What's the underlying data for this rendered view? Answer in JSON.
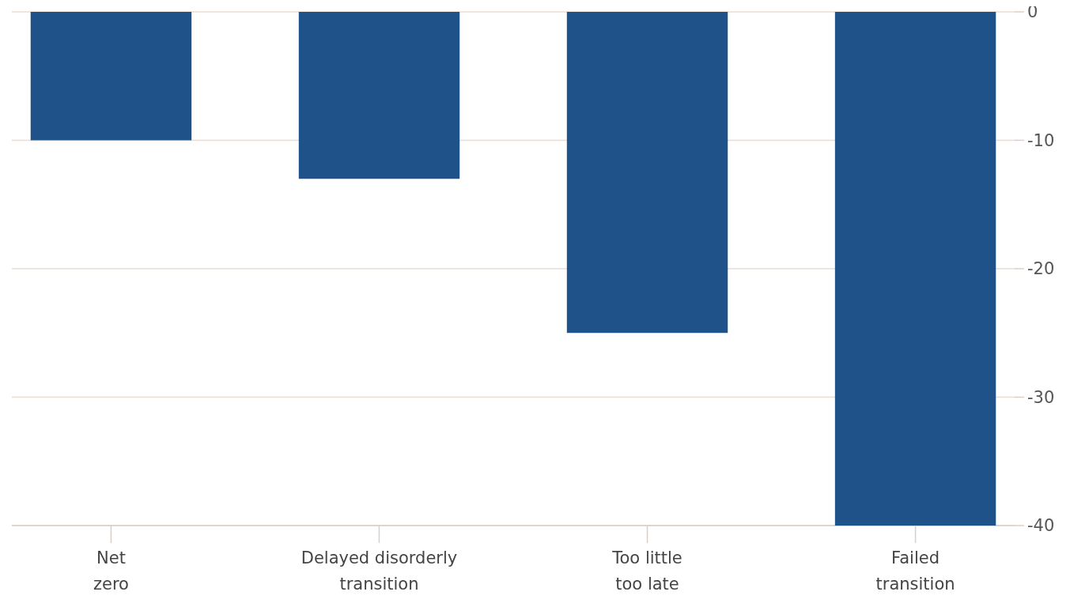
{
  "chart_data": {
    "type": "bar",
    "categories": [
      "Net zero",
      "Delayed disorderly transition",
      "Too little too late",
      "Failed transition"
    ],
    "values": [
      -10,
      -13,
      -25,
      -40
    ],
    "color": "#1f5289",
    "ylim": [
      -40,
      0
    ],
    "yticks": [
      0,
      -10,
      -20,
      -30,
      -40
    ],
    "grid": "y"
  }
}
